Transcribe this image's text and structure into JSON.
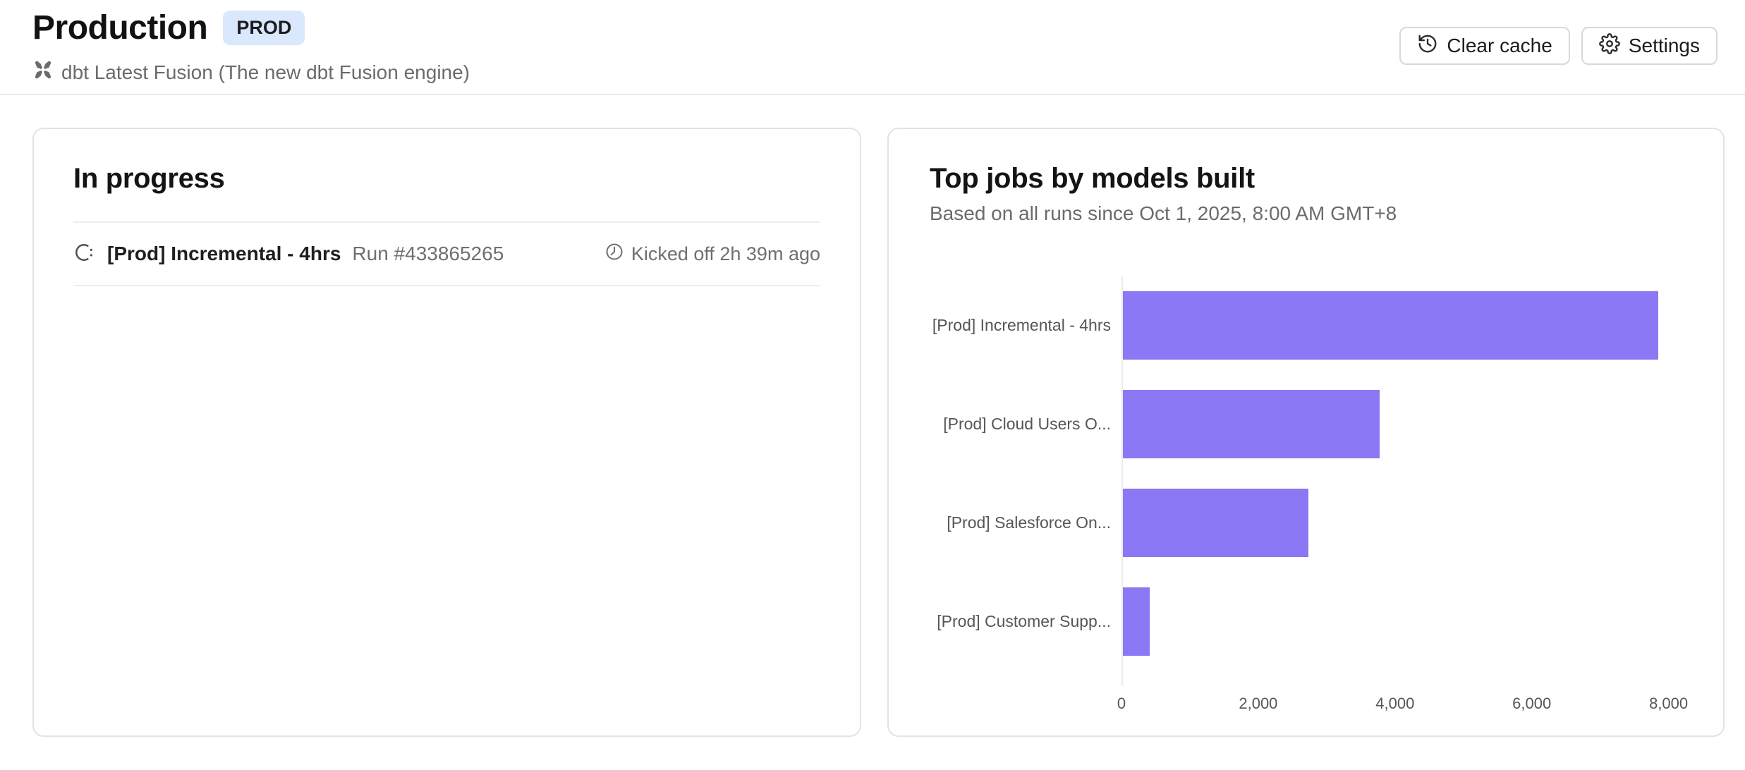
{
  "header": {
    "title": "Production",
    "badge": "PROD",
    "subtitle": "dbt Latest Fusion (The new dbt Fusion engine)",
    "actions": {
      "clear_cache": "Clear cache",
      "settings": "Settings"
    }
  },
  "in_progress": {
    "title": "In progress",
    "runs": [
      {
        "job_name": "[Prod] Incremental - 4hrs",
        "run_label": "Run #433865265",
        "kicked_off": "Kicked off 2h 39m ago"
      }
    ]
  },
  "top_jobs": {
    "title": "Top jobs by models built",
    "subtitle": "Based on all runs since Oct 1, 2025, 8:00 AM GMT+8"
  },
  "chart_data": {
    "type": "bar",
    "orientation": "horizontal",
    "title": "Top jobs by models built",
    "categories": [
      "[Prod] Incremental - 4hrs",
      "[Prod] Cloud Users O...",
      "[Prod] Salesforce On...",
      "[Prod] Customer Supp..."
    ],
    "values": [
      7850,
      3760,
      2720,
      390
    ],
    "x_ticks": [
      0,
      2000,
      4000,
      6000,
      8000
    ],
    "x_tick_labels": [
      "0",
      "2,000",
      "4,000",
      "6,000",
      "8,000"
    ],
    "xlim": [
      0,
      8200
    ],
    "bar_color": "#8b78f4",
    "xlabel": "",
    "ylabel": "",
    "grid": false,
    "legend": false
  },
  "icons": {
    "engine": "dbt-logo",
    "clear_cache": "history",
    "settings": "gear",
    "run_status": "spinner",
    "kicked_off": "clock"
  },
  "colors": {
    "accent": "#8b78f4",
    "badge_bg": "#d9e8fc",
    "muted_text": "#6b6b6b",
    "border": "#e3e3e3"
  }
}
